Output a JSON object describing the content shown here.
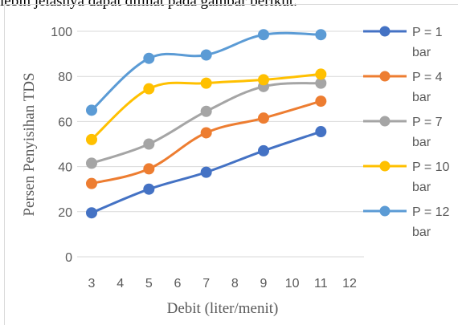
{
  "page": {
    "top_text": "lebih jelasnya dapat dilihat pada gambar berikut."
  },
  "chart_data": {
    "type": "line",
    "title": "",
    "xlabel": "Debit (liter/menit)",
    "ylabel": "Persen Penyisihan TDS",
    "xlim": [
      3,
      12
    ],
    "ylim": [
      0,
      100
    ],
    "x_ticks": [
      "3",
      "4",
      "5",
      "6",
      "7",
      "8",
      "9",
      "10",
      "11",
      "12"
    ],
    "y_ticks": [
      "0",
      "20",
      "40",
      "60",
      "80",
      "100"
    ],
    "grid": "horizontal",
    "legend_position": "right",
    "x": [
      3,
      5,
      7,
      9,
      11
    ],
    "series": [
      {
        "name_line1": "P = 1",
        "name_line2": "bar",
        "color": "#4472c4",
        "values": [
          19.5,
          30,
          37.5,
          47,
          55.5
        ]
      },
      {
        "name_line1": "P = 4",
        "name_line2": "bar",
        "color": "#ed7d31",
        "values": [
          32.5,
          39,
          55,
          61.5,
          69
        ]
      },
      {
        "name_line1": "P = 7",
        "name_line2": "bar",
        "color": "#a5a5a5",
        "values": [
          41.5,
          50,
          64.5,
          75.5,
          77
        ]
      },
      {
        "name_line1": "P = 10",
        "name_line2": "bar",
        "color": "#ffc000",
        "values": [
          52,
          74.5,
          77,
          78.5,
          81
        ]
      },
      {
        "name_line1": "P = 12",
        "name_line2": "bar",
        "color": "#5b9bd5",
        "values": [
          65,
          88,
          89.5,
          98.5,
          98.5
        ]
      }
    ]
  }
}
